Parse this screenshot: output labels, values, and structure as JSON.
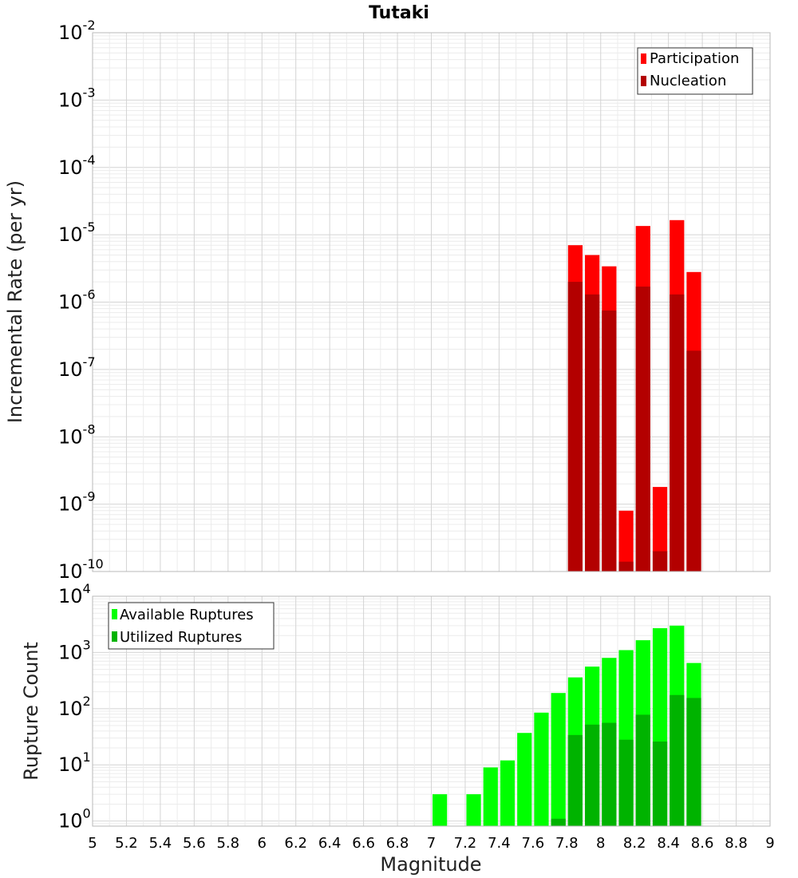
{
  "chart_data": [
    {
      "type": "bar",
      "title": "Tutaki",
      "xlabel": "",
      "ylabel": "Incremental Rate (per yr)",
      "yscale": "log",
      "ylim_exp": [
        -10,
        -2
      ],
      "ytick_exponents": [
        -2,
        -3,
        -4,
        -5,
        -6,
        -7,
        -8,
        -9,
        -10
      ],
      "xlim": [
        5,
        9
      ],
      "bar_width": 0.1,
      "grid": true,
      "legend_position": "top-right",
      "legend": [
        {
          "label": "Participation",
          "color": "#ff0000"
        },
        {
          "label": "Nucleation",
          "color": "#b30000"
        }
      ],
      "series": [
        {
          "name": "Participation",
          "color": "#ff0000",
          "x": [
            7.85,
            7.95,
            8.05,
            8.15,
            8.25,
            8.35,
            8.45,
            8.55
          ],
          "values": [
            7e-06,
            5e-06,
            3.4e-06,
            8e-10,
            1.35e-05,
            1.8e-09,
            1.65e-05,
            2.8e-06
          ]
        },
        {
          "name": "Nucleation",
          "color": "#b30000",
          "x": [
            7.85,
            7.95,
            8.05,
            8.15,
            8.25,
            8.35,
            8.45,
            8.55
          ],
          "values": [
            2e-06,
            1.3e-06,
            7.5e-07,
            1.4e-10,
            1.7e-06,
            2e-10,
            1.3e-06,
            1.9e-07
          ]
        }
      ]
    },
    {
      "type": "bar",
      "title": "",
      "xlabel": "Magnitude",
      "ylabel": "Rupture Count",
      "yscale": "log",
      "ylim_exp": [
        -0.09,
        4
      ],
      "ytick_exponents": [
        4,
        3,
        2,
        1,
        0
      ],
      "xlim": [
        5,
        9
      ],
      "xticks": [
        "5",
        "5.2",
        "5.4",
        "5.6",
        "5.8",
        "6",
        "6.2",
        "6.4",
        "6.6",
        "6.8",
        "7",
        "7.2",
        "7.4",
        "7.6",
        "7.8",
        "8",
        "8.2",
        "8.4",
        "8.6",
        "8.8",
        "9"
      ],
      "bar_width": 0.1,
      "grid": true,
      "legend_position": "top-left",
      "legend": [
        {
          "label": "Available Ruptures",
          "color": "#00ff00"
        },
        {
          "label": "Utilized Ruptures",
          "color": "#00b300"
        }
      ],
      "series": [
        {
          "name": "Available Ruptures",
          "color": "#00ff00",
          "x": [
            7.05,
            7.25,
            7.35,
            7.45,
            7.55,
            7.65,
            7.75,
            7.85,
            7.95,
            8.05,
            8.15,
            8.25,
            8.35,
            8.45,
            8.55
          ],
          "values": [
            3,
            3,
            9,
            12,
            37,
            85,
            190,
            360,
            560,
            800,
            1100,
            1650,
            2700,
            3000,
            650
          ]
        },
        {
          "name": "Utilized Ruptures",
          "color": "#00b300",
          "x": [
            7.75,
            7.85,
            7.95,
            8.05,
            8.15,
            8.25,
            8.35,
            8.45,
            8.55
          ],
          "values": [
            1.1,
            34,
            52,
            56,
            28,
            78,
            26,
            175,
            155
          ]
        }
      ]
    }
  ]
}
